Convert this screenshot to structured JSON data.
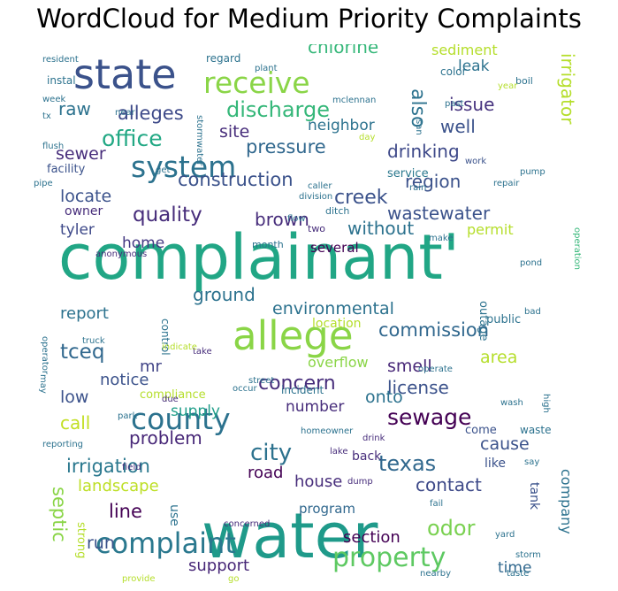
{
  "title": "WordCloud for Medium Priority Complaints",
  "colors": {
    "background": "#ffffff",
    "title": "#000000"
  },
  "words": [
    {
      "text": "complainant'",
      "color": "#21a685"
    },
    {
      "text": "water",
      "color": "#1f9a8a"
    },
    {
      "text": "allege",
      "color": "#8ad547"
    },
    {
      "text": "state",
      "color": "#3b528b"
    },
    {
      "text": "receive",
      "color": "#8ad547"
    },
    {
      "text": "system",
      "color": "#2c728e"
    },
    {
      "text": "county",
      "color": "#2c728e"
    },
    {
      "text": "complaint",
      "color": "#2a788e"
    },
    {
      "text": "property",
      "color": "#5ec962"
    },
    {
      "text": "discharge",
      "color": "#35b779"
    },
    {
      "text": "alleges",
      "color": "#3e4a89"
    },
    {
      "text": "office",
      "color": "#22a884"
    },
    {
      "text": "pressure",
      "color": "#31688e"
    },
    {
      "text": "drinking",
      "color": "#3e4989"
    },
    {
      "text": "construction",
      "color": "#3b528b"
    },
    {
      "text": "quality",
      "color": "#472d7b"
    },
    {
      "text": "sewage",
      "color": "#440154"
    },
    {
      "text": "texas",
      "color": "#31688e"
    },
    {
      "text": "city",
      "color": "#2c728e"
    },
    {
      "text": "chlorine",
      "color": "#35b779"
    },
    {
      "text": "irrigator",
      "color": "#b5de2b"
    },
    {
      "text": "environmental",
      "color": "#2c728e"
    },
    {
      "text": "commission",
      "color": "#31688e"
    },
    {
      "text": "concern",
      "color": "#472d7b"
    },
    {
      "text": "license",
      "color": "#3b528b"
    },
    {
      "text": "irrigation",
      "color": "#2a788e"
    },
    {
      "text": "wastewater",
      "color": "#3b528b"
    },
    {
      "text": "creek",
      "color": "#3b528b"
    },
    {
      "text": "region",
      "color": "#3b528b"
    },
    {
      "text": "tceq",
      "color": "#31688e"
    },
    {
      "text": "problem",
      "color": "#482878"
    },
    {
      "text": "contact",
      "color": "#3e4a89"
    },
    {
      "text": "odor",
      "color": "#7ad151"
    },
    {
      "text": "line",
      "color": "#440154"
    },
    {
      "text": "septic",
      "color": "#8ad547"
    },
    {
      "text": "support",
      "color": "#482878"
    },
    {
      "text": "section",
      "color": "#440154"
    },
    {
      "text": "company",
      "color": "#2c728e"
    },
    {
      "text": "leak",
      "color": "#2c728e"
    },
    {
      "text": "issue",
      "color": "#46327e"
    },
    {
      "text": "also",
      "color": "#2c728e"
    },
    {
      "text": "well",
      "color": "#3b528b"
    },
    {
      "text": "raw",
      "color": "#2c728e"
    },
    {
      "text": "neighbor",
      "color": "#2c728e"
    },
    {
      "text": "site",
      "color": "#472d7b"
    },
    {
      "text": "sewer",
      "color": "#472d7b"
    },
    {
      "text": "locate",
      "color": "#3b528b"
    },
    {
      "text": "without",
      "color": "#2c728e"
    },
    {
      "text": "brown",
      "color": "#472d7b"
    },
    {
      "text": "home",
      "color": "#443983"
    },
    {
      "text": "tyler",
      "color": "#3e4989"
    },
    {
      "text": "owner",
      "color": "#472d7b"
    },
    {
      "text": "report",
      "color": "#2c728e"
    },
    {
      "text": "ground",
      "color": "#2c728e"
    },
    {
      "text": "smell",
      "color": "#482878"
    },
    {
      "text": "notice",
      "color": "#3b528b"
    },
    {
      "text": "mr",
      "color": "#414487"
    },
    {
      "text": "low",
      "color": "#3b528b"
    },
    {
      "text": "call",
      "color": "#c2df23"
    },
    {
      "text": "supply",
      "color": "#1f9e89"
    },
    {
      "text": "onto",
      "color": "#2c728e"
    },
    {
      "text": "area",
      "color": "#b5de2b"
    },
    {
      "text": "cause",
      "color": "#3b528b"
    },
    {
      "text": "number",
      "color": "#472d7b"
    },
    {
      "text": "house",
      "color": "#472d7b"
    },
    {
      "text": "road",
      "color": "#440154"
    },
    {
      "text": "landscape",
      "color": "#bddf26"
    },
    {
      "text": "run",
      "color": "#3b528b"
    },
    {
      "text": "program",
      "color": "#31688e"
    },
    {
      "text": "time",
      "color": "#31688e"
    },
    {
      "text": "sediment",
      "color": "#b5de2b"
    },
    {
      "text": "color",
      "color": "#2c728e"
    },
    {
      "text": "regard",
      "color": "#2c728e"
    },
    {
      "text": "instal",
      "color": "#2c728e"
    },
    {
      "text": "facility",
      "color": "#3b528b"
    },
    {
      "text": "service",
      "color": "#2a788e"
    },
    {
      "text": "permit",
      "color": "#b5de2b"
    },
    {
      "text": "several",
      "color": "#440154"
    },
    {
      "text": "public",
      "color": "#2c728e"
    },
    {
      "text": "outage",
      "color": "#2c728e"
    },
    {
      "text": "overflow",
      "color": "#8ad547"
    },
    {
      "text": "location",
      "color": "#b5de2b"
    },
    {
      "text": "compliance",
      "color": "#b5de2b"
    },
    {
      "text": "incident",
      "color": "#2c728e"
    },
    {
      "text": "waste",
      "color": "#2c728e"
    },
    {
      "text": "come",
      "color": "#3b528b"
    },
    {
      "text": "like",
      "color": "#3b528b"
    },
    {
      "text": "back",
      "color": "#472d7b"
    },
    {
      "text": "tank",
      "color": "#3b528b"
    },
    {
      "text": "use",
      "color": "#2c728e"
    },
    {
      "text": "strong",
      "color": "#b5de2b"
    },
    {
      "text": "control",
      "color": "#2c728e"
    },
    {
      "text": "boil",
      "color": "#2c728e"
    },
    {
      "text": "plant",
      "color": "#2c728e"
    },
    {
      "text": "year",
      "color": "#b5de2b"
    },
    {
      "text": "pump",
      "color": "#2c728e"
    },
    {
      "text": "repair",
      "color": "#2c728e"
    },
    {
      "text": "work",
      "color": "#3b528b"
    },
    {
      "text": "pond",
      "color": "#2c728e"
    },
    {
      "text": "operation",
      "color": "#35b779"
    },
    {
      "text": "bad",
      "color": "#2c728e"
    },
    {
      "text": "month",
      "color": "#2c728e"
    },
    {
      "text": "ditch",
      "color": "#2c728e"
    },
    {
      "text": "flow",
      "color": "#2c728e"
    },
    {
      "text": "two",
      "color": "#472d7b"
    },
    {
      "text": "make",
      "color": "#2c728e"
    },
    {
      "text": "division",
      "color": "#2c728e"
    },
    {
      "text": "take",
      "color": "#472d7b"
    },
    {
      "text": "street",
      "color": "#2c728e"
    },
    {
      "text": "wash",
      "color": "#2c728e"
    },
    {
      "text": "homeowner",
      "color": "#2c728e"
    },
    {
      "text": "drink",
      "color": "#472d7b"
    },
    {
      "text": "lake",
      "color": "#472d7b"
    },
    {
      "text": "say",
      "color": "#2c728e"
    },
    {
      "text": "dump",
      "color": "#472d7b"
    },
    {
      "text": "fail",
      "color": "#2c728e"
    },
    {
      "text": "yard",
      "color": "#2c728e"
    },
    {
      "text": "storm",
      "color": "#2c728e"
    },
    {
      "text": "taste",
      "color": "#2c728e"
    },
    {
      "text": "nearby",
      "color": "#2c728e"
    },
    {
      "text": "go",
      "color": "#b5de2b"
    },
    {
      "text": "provide",
      "color": "#b5de2b"
    },
    {
      "text": "concerned",
      "color": "#472d7b"
    },
    {
      "text": "reporting",
      "color": "#2c728e"
    },
    {
      "text": "park",
      "color": "#2c728e"
    },
    {
      "text": "field",
      "color": "#472d7b"
    },
    {
      "text": "due",
      "color": "#472d7b"
    },
    {
      "text": "occur",
      "color": "#2c728e"
    },
    {
      "text": "operate",
      "color": "#2c728e"
    },
    {
      "text": "high",
      "color": "#2c728e"
    },
    {
      "text": "operator",
      "color": "#2c728e"
    },
    {
      "text": "may",
      "color": "#2c728e"
    },
    {
      "text": "truck",
      "color": "#2c728e"
    },
    {
      "text": "indicate",
      "color": "#b5de2b"
    },
    {
      "text": "anonymous",
      "color": "#472d7b"
    },
    {
      "text": "caller",
      "color": "#2c728e"
    },
    {
      "text": "rain",
      "color": "#2c728e"
    },
    {
      "text": "get",
      "color": "#2c728e"
    },
    {
      "text": "pipe",
      "color": "#2c728e"
    },
    {
      "text": "tx",
      "color": "#2c728e"
    },
    {
      "text": "flush",
      "color": "#2c728e"
    },
    {
      "text": "near",
      "color": "#2c728e"
    },
    {
      "text": "stormwater",
      "color": "#2c728e"
    },
    {
      "text": "week",
      "color": "#2c728e"
    },
    {
      "text": "mclennan",
      "color": "#2c728e"
    },
    {
      "text": "san",
      "color": "#2c728e"
    },
    {
      "text": "day",
      "color": "#b5de2b"
    },
    {
      "text": "past",
      "color": "#2c728e"
    },
    {
      "text": "resident",
      "color": "#2c728e"
    },
    {
      "text": "one",
      "color": "#35b779"
    }
  ]
}
